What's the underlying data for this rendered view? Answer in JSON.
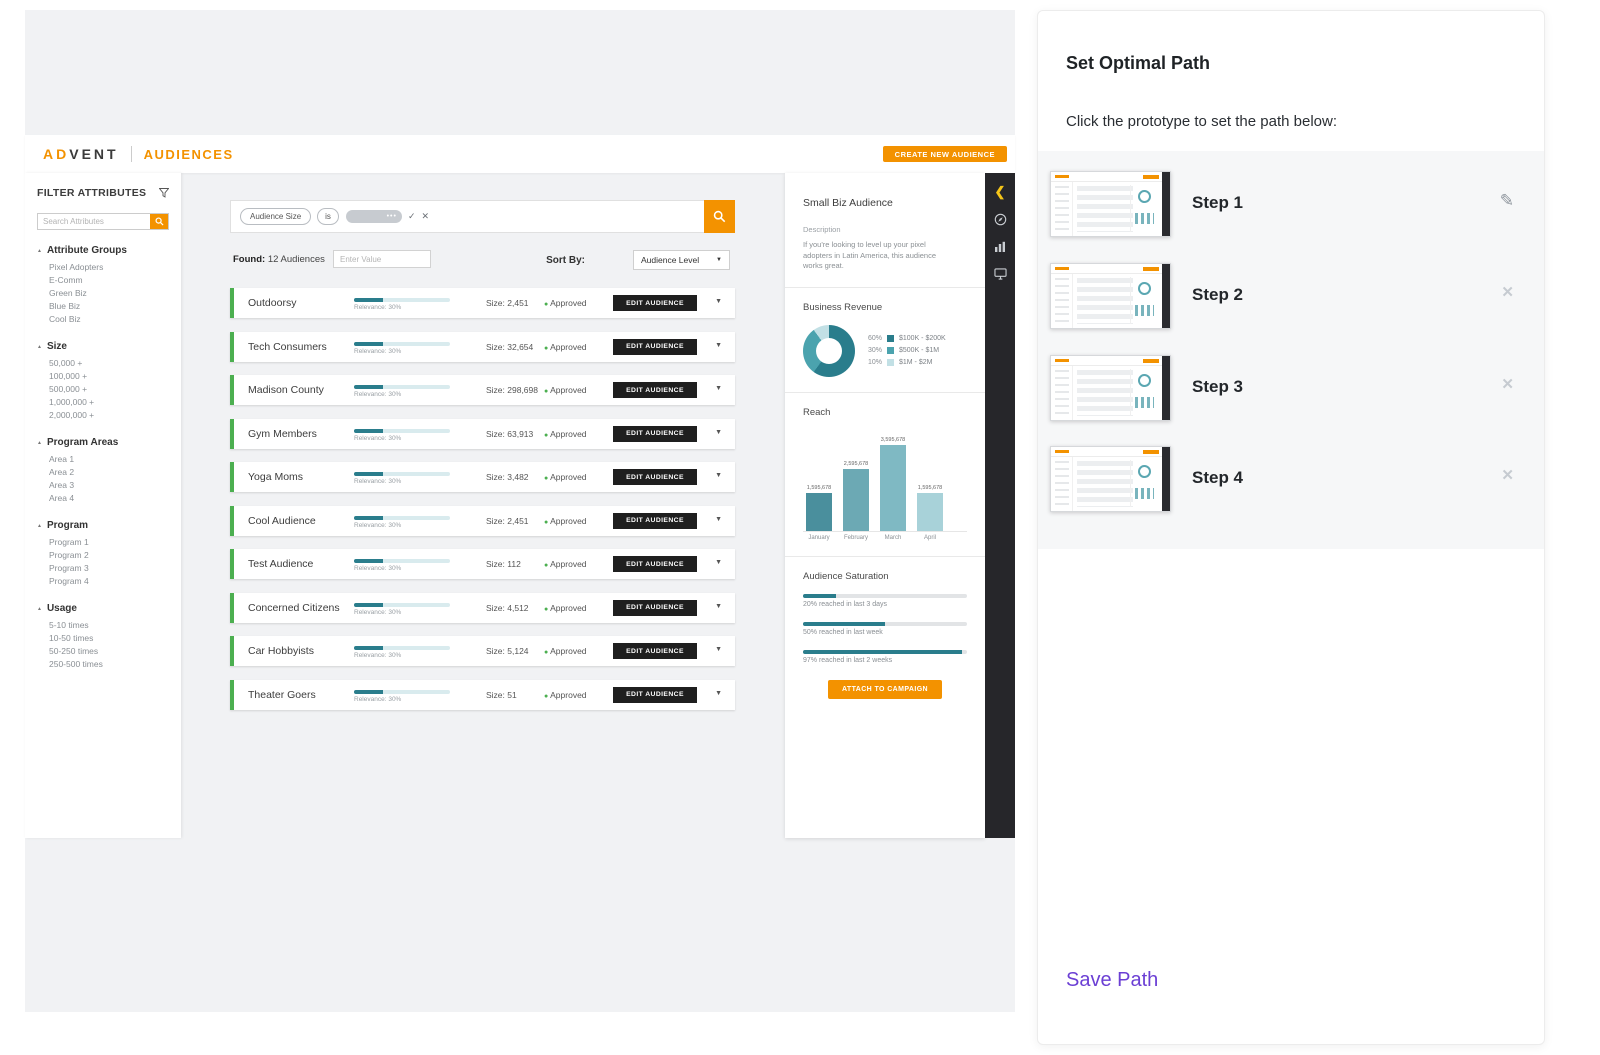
{
  "colors": {
    "accent_orange": "#F39200",
    "teal_dark": "#2A7D8C",
    "approved_green": "#4CAF50",
    "dark_button": "#1F1F1F",
    "save_purple": "#6B3FD4",
    "rail_yellow": "#F5C518"
  },
  "icons": {
    "triangle_up": "▲",
    "chevron_down": "▼",
    "chevron_left": "❮",
    "check": "✓",
    "close": "✕",
    "ellipsis": "•••",
    "dot": "●",
    "pencil": "✎",
    "remove": "✕"
  },
  "header": {
    "logo_left": "AD",
    "logo_right": "VENT",
    "section": "AUDIENCES",
    "create_button": "CREATE NEW AUDIENCE"
  },
  "filters": {
    "title": "FILTER ATTRIBUTES",
    "search_placeholder": "Search Attributes",
    "groups": [
      {
        "label": "Attribute Groups",
        "items": [
          "Pixel Adopters",
          "E-Comm",
          "Green Biz",
          "Blue Biz",
          "Cool Biz"
        ]
      },
      {
        "label": "Size",
        "items": [
          "50,000 +",
          "100,000 +",
          "500,000 +",
          "1,000,000 +",
          "2,000,000 +"
        ]
      },
      {
        "label": "Program Areas",
        "items": [
          "Area 1",
          "Area 2",
          "Area 3",
          "Area 4"
        ]
      },
      {
        "label": "Program",
        "items": [
          "Program 1",
          "Program 2",
          "Program 3",
          "Program 4"
        ]
      },
      {
        "label": "Usage",
        "items": [
          "5-10 times",
          "10-50 times",
          "50-250 times",
          "250-500 times"
        ]
      }
    ]
  },
  "toolbar": {
    "filter_chip": "Audience Size",
    "operator_chip": "is",
    "found_label": "Found:",
    "found_value": "12 Audiences",
    "value_placeholder": "Enter Value",
    "sort_label": "Sort By:",
    "sort_value": "Audience Level"
  },
  "list": {
    "edit_button": "EDIT AUDIENCE",
    "audiences": [
      {
        "name": "Outdoorsy",
        "relevance_label": "Relevance: 30%",
        "relevance_pct": 30,
        "size": "Size: 2,451",
        "status": "Approved"
      },
      {
        "name": "Tech Consumers",
        "relevance_label": "Relevance: 30%",
        "relevance_pct": 30,
        "size": "Size: 32,654",
        "status": "Approved"
      },
      {
        "name": "Madison County",
        "relevance_label": "Relevance: 30%",
        "relevance_pct": 30,
        "size": "Size: 298,698",
        "status": "Approved"
      },
      {
        "name": "Gym Members",
        "relevance_label": "Relevance: 30%",
        "relevance_pct": 30,
        "size": "Size: 63,913",
        "status": "Approved"
      },
      {
        "name": "Yoga Moms",
        "relevance_label": "Relevance: 30%",
        "relevance_pct": 30,
        "size": "Size: 3,482",
        "status": "Approved"
      },
      {
        "name": "Cool Audience",
        "relevance_label": "Relevance: 30%",
        "relevance_pct": 30,
        "size": "Size: 2,451",
        "status": "Approved"
      },
      {
        "name": "Test Audience",
        "relevance_label": "Relevance: 30%",
        "relevance_pct": 30,
        "size": "Size: 112",
        "status": "Approved"
      },
      {
        "name": "Concerned Citizens",
        "relevance_label": "Relevance: 30%",
        "relevance_pct": 30,
        "size": "Size: 4,512",
        "status": "Approved"
      },
      {
        "name": "Car Hobbyists",
        "relevance_label": "Relevance: 30%",
        "relevance_pct": 30,
        "size": "Size: 5,124",
        "status": "Approved"
      },
      {
        "name": "Theater Goers",
        "relevance_label": "Relevance: 30%",
        "relevance_pct": 30,
        "size": "Size: 51",
        "status": "Approved"
      }
    ]
  },
  "detail": {
    "title": "Small Biz Audience",
    "description_label": "Description",
    "description": "If you're looking to level up your pixel adopters in Latin America, this audience works great.",
    "revenue_title": "Business Revenue",
    "reach_title": "Reach",
    "saturation_title": "Audience Saturation",
    "saturation": [
      {
        "pct": 20,
        "label": "20% reached in last 3 days"
      },
      {
        "pct": 50,
        "label": "50% reached in last week"
      },
      {
        "pct": 97,
        "label": "97% reached in last 2 weeks"
      }
    ],
    "attach_button": "ATTACH TO CAMPAIGN"
  },
  "path_panel": {
    "title": "Set Optimal Path",
    "subtitle": "Click the prototype to set the path below:",
    "steps": [
      {
        "label": "Step 1",
        "action": "edit"
      },
      {
        "label": "Step 2",
        "action": "remove"
      },
      {
        "label": "Step 3",
        "action": "remove"
      },
      {
        "label": "Step 4",
        "action": "remove"
      }
    ],
    "save_label": "Save Path"
  },
  "chart_data": [
    {
      "type": "pie",
      "donut": true,
      "title": "Business Revenue",
      "labels": [
        "$100K - $200K",
        "$500K - $1M",
        "$1M - $2M"
      ],
      "values": [
        60,
        30,
        10
      ],
      "value_labels": [
        "60%",
        "30%",
        "10%"
      ],
      "segment_colors": [
        "#2A7D8C",
        "#4BA3AE",
        "#C2E0E5"
      ],
      "legend_position": "right"
    },
    {
      "type": "bar",
      "title": "Reach",
      "categories": [
        "January",
        "February",
        "March",
        "April"
      ],
      "values": [
        1595678,
        2595678,
        3595678,
        1595678
      ],
      "value_labels": [
        "1,595,678",
        "2,595,678",
        "3,595,678",
        "1,595,678"
      ],
      "bar_colors": [
        "#4A8F9D",
        "#6CA9B4",
        "#7FB9C3",
        "#A8D2D9"
      ],
      "ylim": [
        0,
        3595678
      ],
      "grid": false
    },
    {
      "type": "bar",
      "orientation": "horizontal",
      "title": "Audience Saturation",
      "categories": [
        "reached in last 3 days",
        "reached in last week",
        "reached in last 2 weeks"
      ],
      "values": [
        20,
        50,
        97
      ],
      "unit": "%",
      "xlim": [
        0,
        100
      ]
    }
  ]
}
